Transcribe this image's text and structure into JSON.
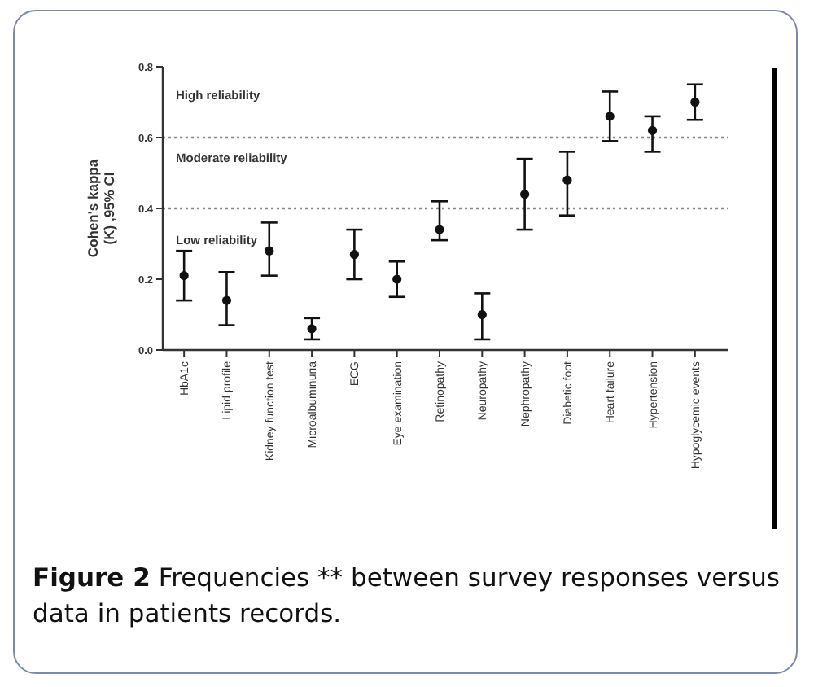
{
  "chart_data": {
    "type": "scatter",
    "ylabel": "Cohen's kappa\n(K) ,95% CI",
    "categories": [
      "HbA1c",
      "Lipid profile",
      "Kidney function test",
      "Microalbuminuria",
      "ECG",
      "Eye examination",
      "Retinopathy",
      "Neuropathy",
      "Nephropathy",
      "Diabetic foot",
      "Heart failure",
      "Hypertension",
      "Hypoglycemic events"
    ],
    "values": [
      0.21,
      0.14,
      0.28,
      0.06,
      0.27,
      0.2,
      0.34,
      0.1,
      0.44,
      0.48,
      0.66,
      0.62,
      0.7
    ],
    "errors": [
      [
        0.14,
        0.28
      ],
      [
        0.07,
        0.22
      ],
      [
        0.21,
        0.36
      ],
      [
        0.03,
        0.09
      ],
      [
        0.2,
        0.34
      ],
      [
        0.15,
        0.25
      ],
      [
        0.31,
        0.42
      ],
      [
        0.03,
        0.16
      ],
      [
        0.34,
        0.54
      ],
      [
        0.38,
        0.56
      ],
      [
        0.59,
        0.73
      ],
      [
        0.56,
        0.66
      ],
      [
        0.65,
        0.75
      ]
    ],
    "color": "#111111",
    "marker": "circle",
    "ylim": [
      0,
      0.8
    ],
    "yticks": [
      {
        "value": 0,
        "label": "0.0"
      },
      0.2,
      0.4,
      0.6,
      0.8
    ],
    "grid": false,
    "ref_lines": [
      {
        "axis": "y",
        "value": 0.6,
        "color": "#888888",
        "line_style": "dotted"
      },
      {
        "axis": "y",
        "value": 0.4,
        "color": "#888888",
        "line_style": "dotted"
      }
    ],
    "annotations": [
      "High reliability",
      "Moderate reliability",
      "Low reliability",
      "Figure 2",
      "Frequencies ** between survey responses versus data in patients records."
    ]
  }
}
